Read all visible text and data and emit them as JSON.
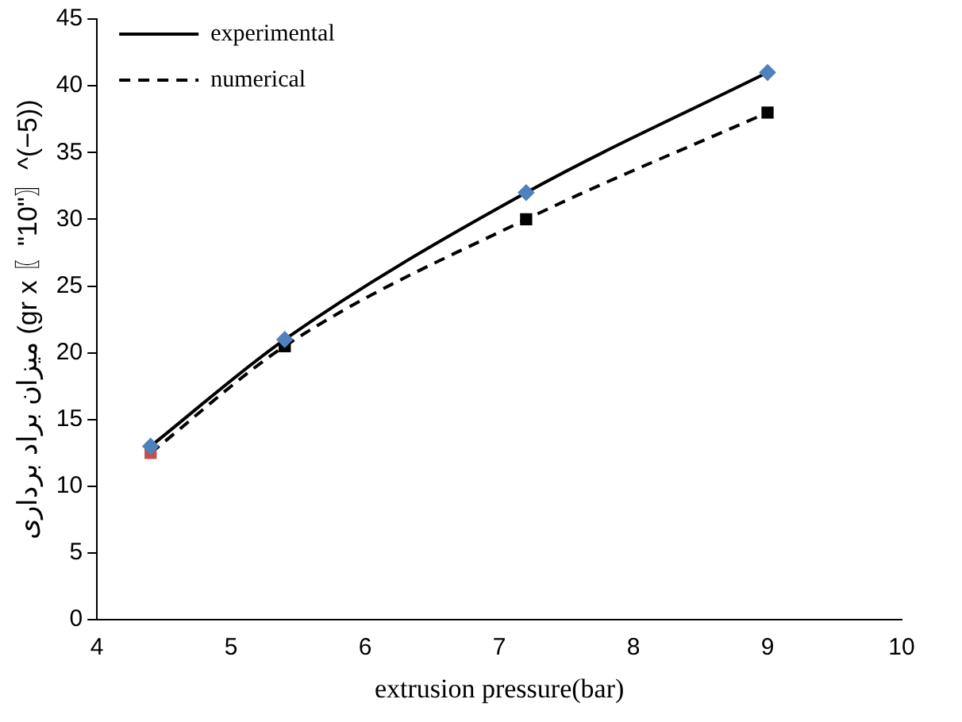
{
  "chart_data": {
    "type": "line",
    "xlabel": "extrusion pressure(bar)",
    "ylabel": "میزان براد برداری (gr x 〖\"10\"〗^(−5))",
    "xlim": [
      4,
      10
    ],
    "xticks": [
      4,
      5,
      6,
      7,
      8,
      9,
      10
    ],
    "ylim": [
      0,
      45
    ],
    "yticks": [
      0,
      5,
      10,
      15,
      20,
      25,
      30,
      35,
      40,
      45
    ],
    "grid": false,
    "legend": "top left",
    "series": [
      {
        "name": "experimental",
        "color": "#000000",
        "x": [
          4.4,
          5.4,
          7.2,
          9
        ],
        "values": [
          13,
          21,
          32,
          41
        ],
        "marker": "diamond",
        "line_style": "solid",
        "colors": [
          "#4f81bd",
          "#4f81bd",
          "#4f81bd",
          "#4f81bd"
        ]
      },
      {
        "name": "numerical",
        "color": "#000000",
        "x": [
          4.4,
          5.4,
          7.2,
          9
        ],
        "values": [
          12.5,
          20.5,
          30,
          38
        ],
        "marker": "square",
        "line_style": "dashed",
        "colors": [
          "#c0504d",
          "#000000",
          "#000000",
          "#000000"
        ]
      }
    ]
  }
}
